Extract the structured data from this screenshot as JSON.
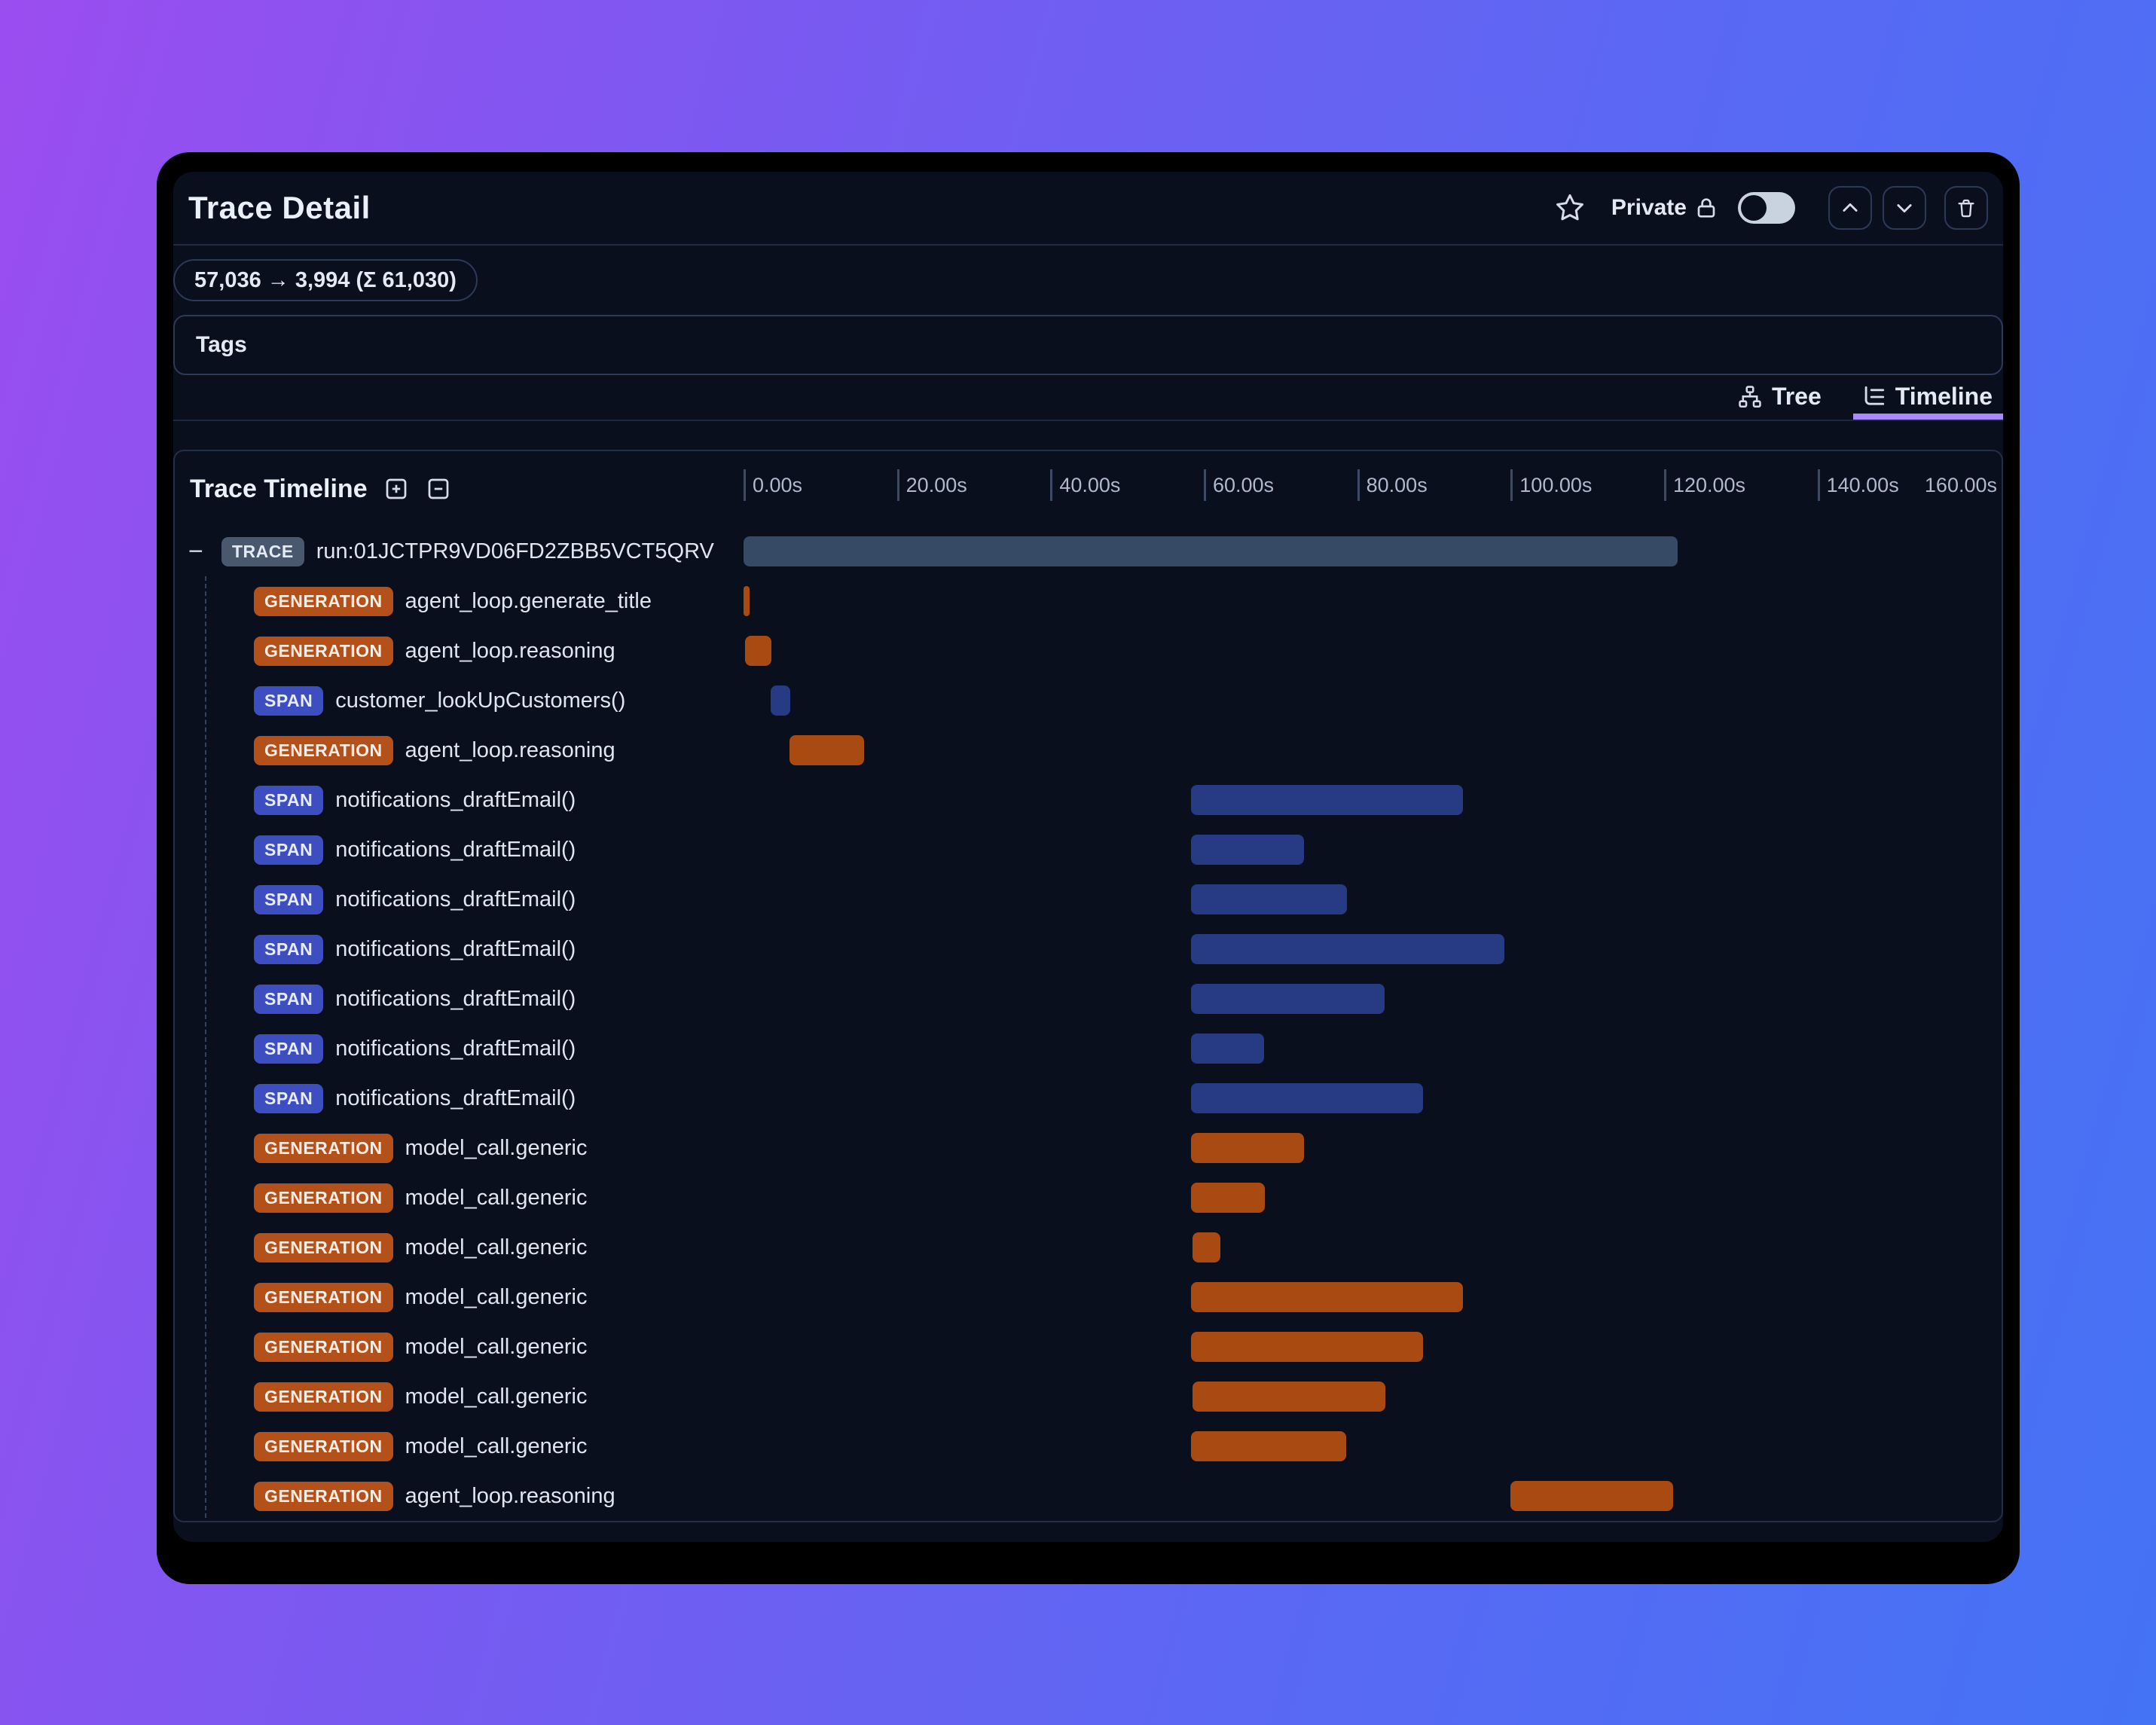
{
  "header": {
    "title": "Trace Detail",
    "privacy_label": "Private",
    "privacy_toggle_state": "off"
  },
  "token_badge": {
    "text": "57,036 → 3,994 (Σ 61,030)"
  },
  "tags": {
    "label": "Tags"
  },
  "view_tabs": [
    {
      "label": "Tree",
      "icon": "tree-icon",
      "active": false
    },
    {
      "label": "Timeline",
      "icon": "timeline-icon",
      "active": true
    }
  ],
  "colors": {
    "accent_underline": "#A78BFA",
    "trace_bar": "#364A66",
    "generation_bar": "#A84A12",
    "span_bar": "#273B85",
    "trace_badge": "#4A586E",
    "generation_badge": "#B4511B",
    "span_badge": "#3C4EC0",
    "window_bg": "#0A0F1D",
    "bg_gradient_start": "#9B4DF0",
    "bg_gradient_end": "#4473F5"
  },
  "timeline": {
    "title": "Trace Timeline",
    "axis": {
      "ticks": [
        {
          "label": "0.00s",
          "s": 0
        },
        {
          "label": "20.00s",
          "s": 20
        },
        {
          "label": "40.00s",
          "s": 40
        },
        {
          "label": "60.00s",
          "s": 60
        },
        {
          "label": "80.00s",
          "s": 80
        },
        {
          "label": "100.00s",
          "s": 100
        },
        {
          "label": "120.00s",
          "s": 120
        },
        {
          "label": "140.00s",
          "s": 140
        }
      ],
      "end_label": "160.00s",
      "column_span_s": 164
    },
    "rows": [
      {
        "type": "trace",
        "badge": "TRACE",
        "label": "run:01JCTPR9VD06FD2ZBB5VCT5QRV",
        "start_s": 0,
        "end_s": 121.8,
        "collapse_glyph": "−"
      },
      {
        "type": "generation",
        "badge": "GENERATION",
        "label": "agent_loop.generate_title",
        "start_s": 0,
        "end_s": 0.8
      },
      {
        "type": "generation",
        "badge": "GENERATION",
        "label": "agent_loop.reasoning",
        "start_s": 0.2,
        "end_s": 3.6
      },
      {
        "type": "span",
        "badge": "SPAN",
        "label": "customer_lookUpCustomers()",
        "start_s": 3.5,
        "end_s": 6.1
      },
      {
        "type": "generation",
        "badge": "GENERATION",
        "label": "agent_loop.reasoning",
        "start_s": 6.0,
        "end_s": 15.7
      },
      {
        "type": "span",
        "badge": "SPAN",
        "label": "notifications_draftEmail()",
        "start_s": 58.3,
        "end_s": 93.8
      },
      {
        "type": "span",
        "badge": "SPAN",
        "label": "notifications_draftEmail()",
        "start_s": 58.3,
        "end_s": 73.1
      },
      {
        "type": "span",
        "badge": "SPAN",
        "label": "notifications_draftEmail()",
        "start_s": 58.3,
        "end_s": 78.7
      },
      {
        "type": "span",
        "badge": "SPAN",
        "label": "notifications_draftEmail()",
        "start_s": 58.3,
        "end_s": 99.2
      },
      {
        "type": "span",
        "badge": "SPAN",
        "label": "notifications_draftEmail()",
        "start_s": 58.3,
        "end_s": 83.6
      },
      {
        "type": "span",
        "badge": "SPAN",
        "label": "notifications_draftEmail()",
        "start_s": 58.3,
        "end_s": 67.9
      },
      {
        "type": "span",
        "badge": "SPAN",
        "label": "notifications_draftEmail()",
        "start_s": 58.3,
        "end_s": 88.6
      },
      {
        "type": "generation",
        "badge": "GENERATION",
        "label": "model_call.generic",
        "start_s": 58.3,
        "end_s": 73.1
      },
      {
        "type": "generation",
        "badge": "GENERATION",
        "label": "model_call.generic",
        "start_s": 58.3,
        "end_s": 68.0
      },
      {
        "type": "generation",
        "badge": "GENERATION",
        "label": "model_call.generic",
        "start_s": 58.5,
        "end_s": 62.2
      },
      {
        "type": "generation",
        "badge": "GENERATION",
        "label": "model_call.generic",
        "start_s": 58.3,
        "end_s": 93.8
      },
      {
        "type": "generation",
        "badge": "GENERATION",
        "label": "model_call.generic",
        "start_s": 58.3,
        "end_s": 88.6
      },
      {
        "type": "generation",
        "badge": "GENERATION",
        "label": "model_call.generic",
        "start_s": 58.5,
        "end_s": 83.7
      },
      {
        "type": "generation",
        "badge": "GENERATION",
        "label": "model_call.generic",
        "start_s": 58.3,
        "end_s": 78.6
      },
      {
        "type": "generation",
        "badge": "GENERATION",
        "label": "agent_loop.reasoning",
        "start_s": 100.0,
        "end_s": 121.2
      }
    ]
  }
}
